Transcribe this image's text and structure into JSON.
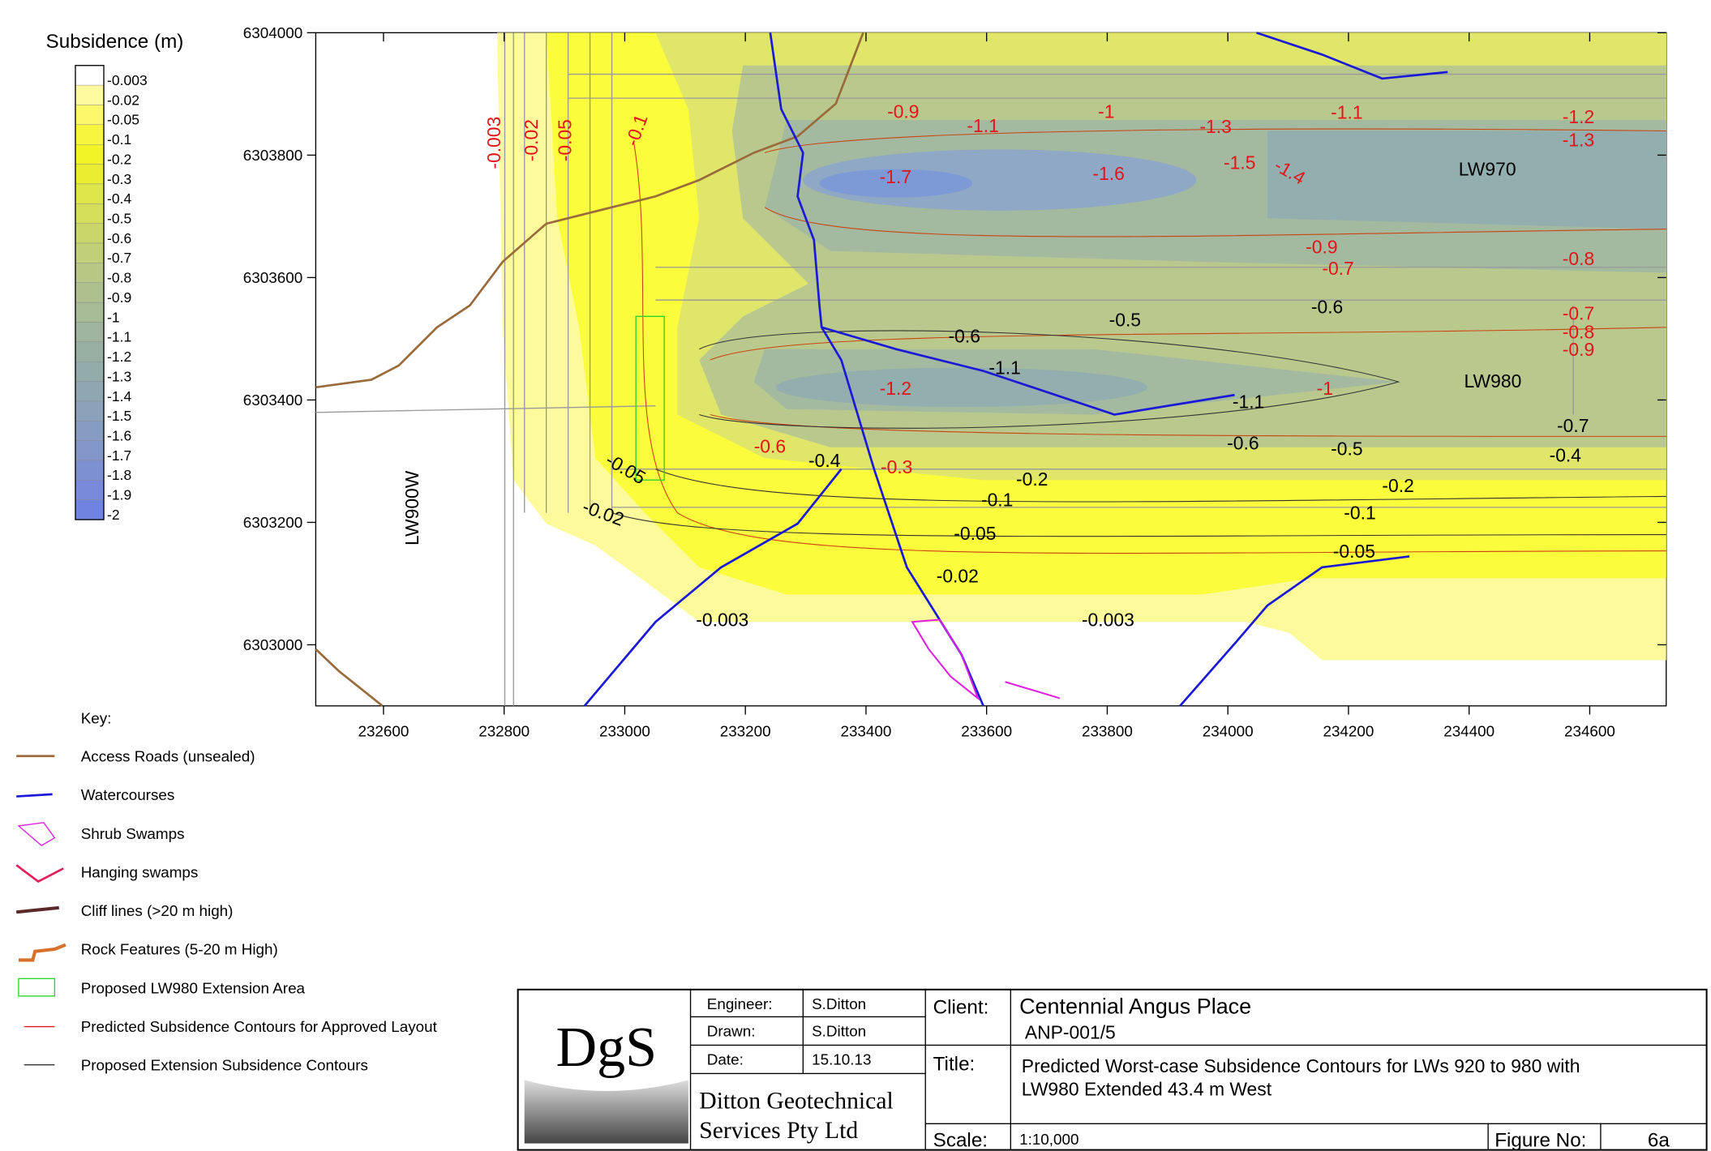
{
  "legend": {
    "title": "Subsidence (m)",
    "levels": [
      "-0.003",
      "-0.02",
      "-0.05",
      "-0.1",
      "-0.2",
      "-0.3",
      "-0.4",
      "-0.5",
      "-0.6",
      "-0.7",
      "-0.8",
      "-0.9",
      "-1",
      "-1.1",
      "-1.2",
      "-1.3",
      "-1.4",
      "-1.5",
      "-1.6",
      "-1.7",
      "-1.8",
      "-1.9",
      "-2"
    ]
  },
  "axes": {
    "yticks": [
      6303000,
      6303200,
      6303400,
      6303600,
      6303800,
      6304000
    ],
    "xticks": [
      232600,
      232800,
      233000,
      233200,
      233400,
      233600,
      233800,
      234000,
      234200,
      234400,
      234600
    ]
  },
  "map_labels": [
    "-0.003",
    "-0.02",
    "-0.05",
    "-0.1",
    "-0.9",
    "-1.1",
    "-1",
    "-1.3",
    "-1.1",
    "-1.2",
    "-1.3",
    "-1.7",
    "-1.6",
    "-1.5",
    "-1.4",
    "LW970",
    "-0.9",
    "-0.7",
    "-0.8",
    "-0.5",
    "-0.6",
    "-0.6",
    "-0.7",
    "-0.8",
    "-0.9",
    "LW980",
    "-1.2",
    "-1.1",
    "-1.1",
    "-1",
    "-0.7",
    "-0.4",
    "-0.5",
    "-0.6",
    "-0.6",
    "-0.4",
    "-0.3",
    "-0.2",
    "-0.2",
    "-0.1",
    "-0.1",
    "-0.05",
    "-0.05",
    "-0.02",
    "-0.003",
    "-0.003",
    "-0.02",
    "-0.05",
    "LW900W"
  ],
  "key": {
    "title": "Key:",
    "items": [
      "Access Roads (unsealed)",
      "Watercourses",
      "Shrub Swamps",
      "Hanging swamps",
      "Cliff lines (>20 m high)",
      "Rock Features (5-20 m High)",
      "Proposed LW980 Extension Area",
      "Predicted Subsidence Contours for Approved Layout",
      "Proposed Extension Subsidence Contours"
    ]
  },
  "title_block": {
    "logo": "DgS",
    "company_line1": "Ditton Geotechnical",
    "company_line2": "Services Pty Ltd",
    "engineer_label": "Engineer:",
    "engineer": "S.Ditton",
    "drawn_label": "Drawn:",
    "drawn": "S.Ditton",
    "date_label": "Date:",
    "date": "15.10.13",
    "client_label": "Client:",
    "client": "Centennial Angus Place",
    "project_code": "ANP-001/5",
    "title_label": "Title:",
    "title_line1": "Predicted Worst-case Subsidence Contours for LWs 920 to 980 with",
    "title_line2": "LW980 Extended 43.4 m West",
    "scale_label": "Scale:",
    "scale": "1:10,000",
    "figure_label": "Figure No:",
    "figure": "6a"
  }
}
